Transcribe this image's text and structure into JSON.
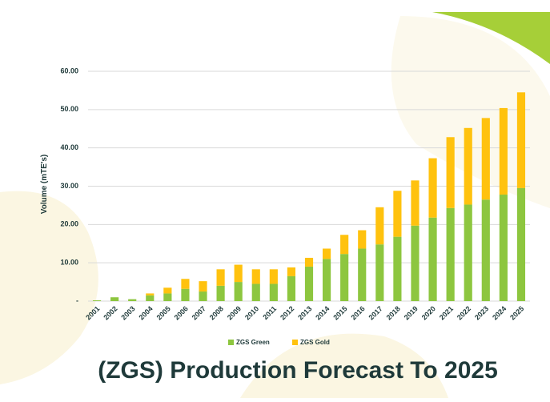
{
  "chart_data": {
    "type": "stacked-bar",
    "title": "(ZGS) Production Forecast To 2025",
    "y_label": "Volume (mTE's)",
    "categories": [
      "2001",
      "2002",
      "2003",
      "2004",
      "2005",
      "2006",
      "2007",
      "2008",
      "2009",
      "2010",
      "2011",
      "2012",
      "2013",
      "2014",
      "2015",
      "2016",
      "2017",
      "2018",
      "2019",
      "2020",
      "2021",
      "2022",
      "2023",
      "2024",
      "2025"
    ],
    "series": [
      {
        "name": "ZGS Green",
        "color": "#8dc63f",
        "values": [
          0.2,
          1,
          0.5,
          1.5,
          2,
          3.2,
          2.5,
          4,
          5,
          4.5,
          4.5,
          6.5,
          9,
          11,
          12.3,
          13.7,
          14.8,
          16.8,
          19.7,
          21.8,
          24.3,
          25.2,
          26.5,
          27.8,
          29.5
        ]
      },
      {
        "name": "ZGS Gold",
        "color": "#ffc20e",
        "values": [
          0,
          0,
          0,
          0.5,
          1.5,
          2.6,
          2.7,
          4.3,
          4.5,
          3.8,
          3.8,
          2.3,
          2.3,
          2.7,
          5,
          4.8,
          9.7,
          12,
          11.8,
          15.5,
          18.5,
          20,
          21.3,
          22.6,
          25
        ]
      }
    ],
    "ylim": [
      0,
      60
    ],
    "yticks": [
      {
        "value": 0,
        "label": "-"
      },
      {
        "value": 10,
        "label": "10.00"
      },
      {
        "value": 20,
        "label": "20.00"
      },
      {
        "value": 30,
        "label": "30.00"
      },
      {
        "value": 40,
        "label": "40.00"
      },
      {
        "value": 50,
        "label": "50.00"
      },
      {
        "value": 60,
        "label": "60.00"
      }
    ],
    "grid": true,
    "legend": "bottom"
  }
}
